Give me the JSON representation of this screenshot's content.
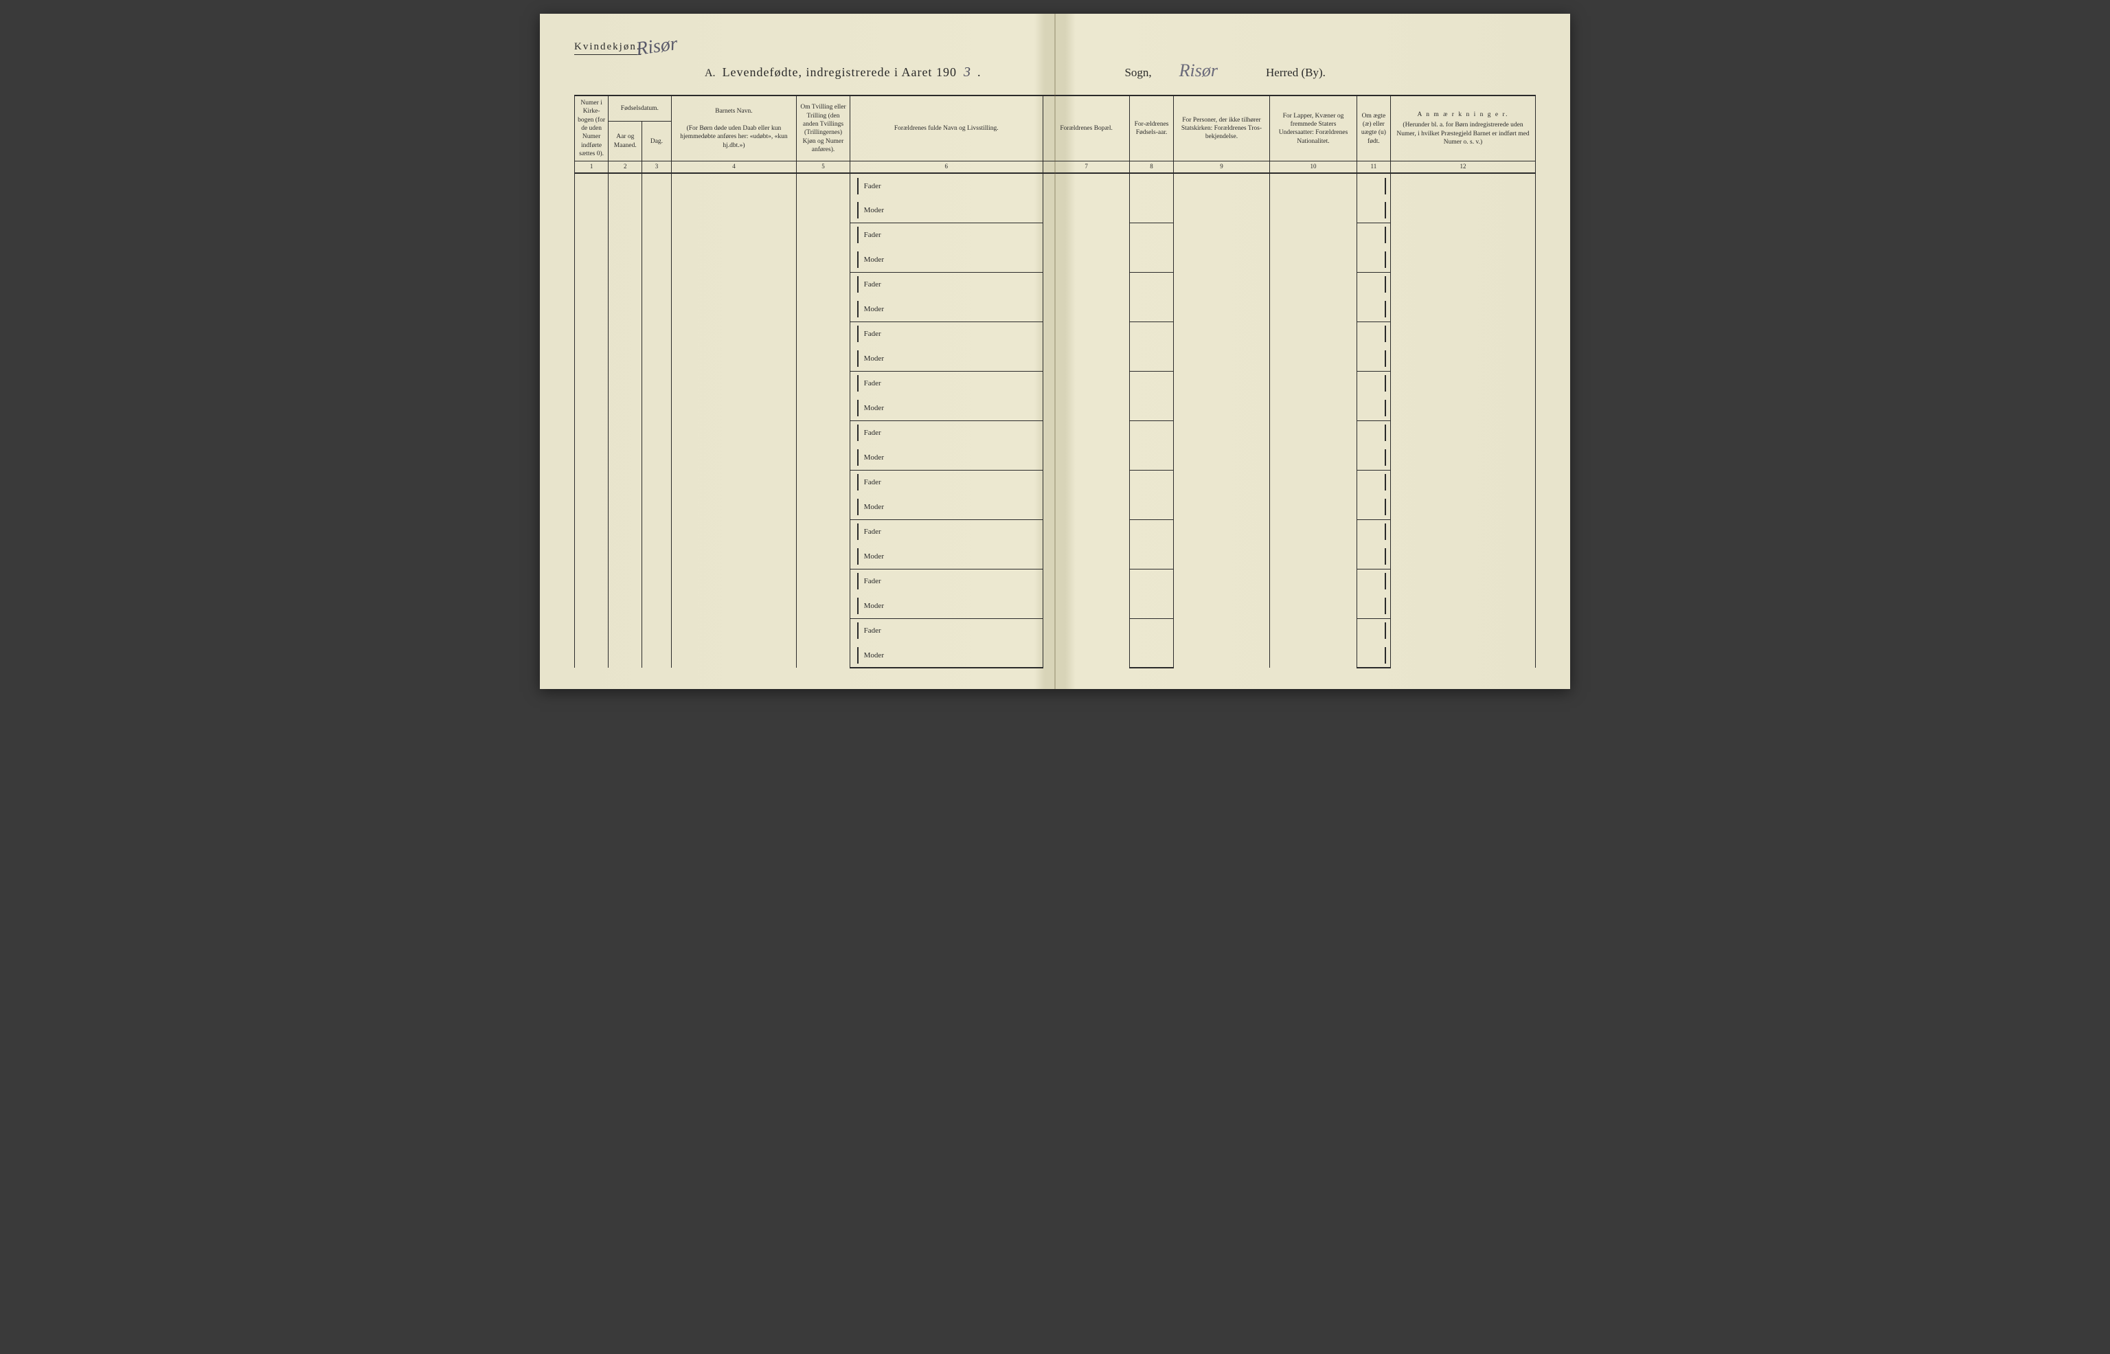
{
  "header": {
    "kvindekjon": "Kvindekjøn.",
    "handwritten_top": "Risør",
    "title_prefix": "A.",
    "title_main": "Levendefødte, indregistrerede i Aaret 190",
    "title_year_hand": "3",
    "title_period": ".",
    "sogn_label": "Sogn,",
    "sogn_value": "Risør",
    "herred_label": "Herred (By)."
  },
  "columns": {
    "c1": "Numer i Kirke-bogen (for de uden Numer indførte sættes 0).",
    "c2_group": "Fødselsdatum.",
    "c2": "Aar og Maaned.",
    "c3": "Dag.",
    "c4_title": "Barnets Navn.",
    "c4_sub": "(For Børn døde uden Daab eller kun hjemmedøbte anføres her: «udøbt», «kun hj.dbt.»)",
    "c5": "Om Tvilling eller Trilling (den anden Tvillings (Trillingernes) Kjøn og Numer anføres).",
    "c6": "Forældrenes fulde Navn og Livsstilling.",
    "c7": "Forældrenes Bopæl.",
    "c8": "For-ældrenes Fødsels-aar.",
    "c9": "For Personer, der ikke tilhører Statskirken: Forældrenes Tros-bekjendelse.",
    "c10": "For Lapper, Kvæner og fremmede Staters Undersaatter: Forældrenes Nationalitet.",
    "c11": "Om ægte (æ) eller uægte (u) født.",
    "c12_title": "A n m æ r k n i n g e r.",
    "c12_sub": "(Herunder bl. a. for Børn indregistrerede uden Numer, i hvilket Præstegjeld Barnet er indført med Numer o. s. v.)"
  },
  "col_numbers": [
    "1",
    "2",
    "3",
    "4",
    "5",
    "6",
    "7",
    "8",
    "9",
    "10",
    "11",
    "12"
  ],
  "row_labels": {
    "fader": "Fader",
    "moder": "Moder"
  },
  "row_count": 10,
  "colors": {
    "paper": "#e8e4cc",
    "ink": "#2a2a2a",
    "handwriting": "#5a5a6a"
  }
}
